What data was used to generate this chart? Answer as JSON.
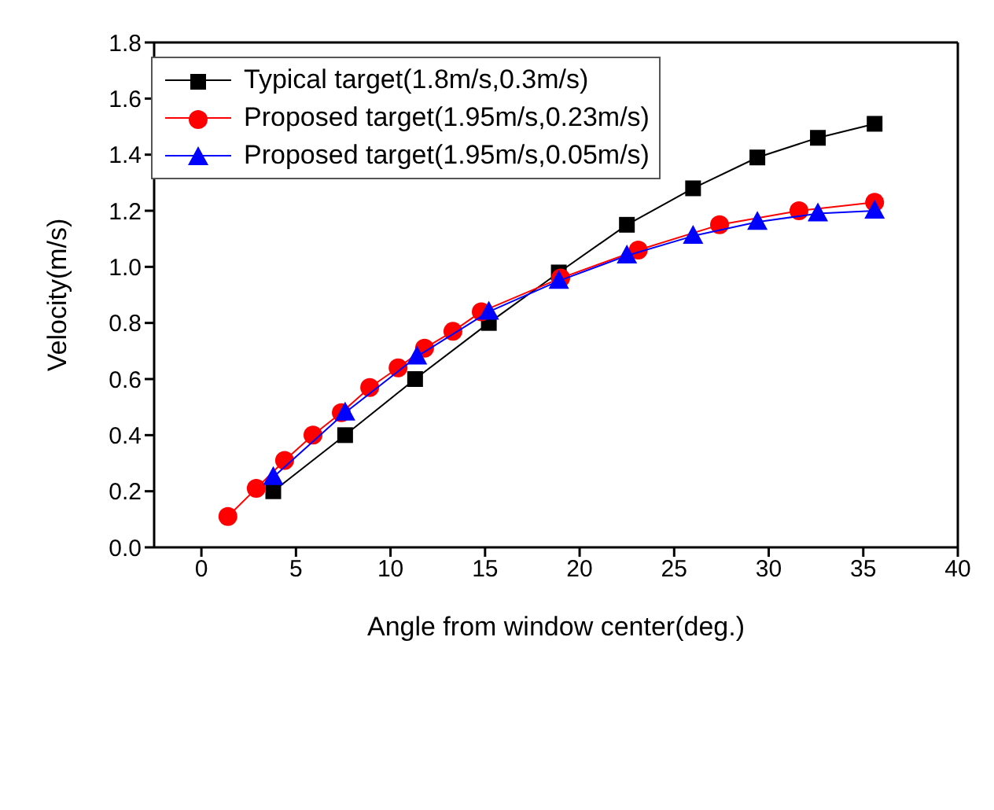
{
  "chart_data": {
    "type": "line",
    "xlabel": "Angle from window center(deg.)",
    "ylabel": "Velocity(m/s)",
    "xlim": [
      -2.5,
      40
    ],
    "xticks": [
      0,
      5,
      10,
      15,
      20,
      25,
      30,
      35,
      40
    ],
    "ylim": [
      0,
      1.8
    ],
    "yticks": [
      {
        "value": 0,
        "label": "0.0"
      },
      0.2,
      0.4,
      0.6,
      0.8,
      {
        "value": 1,
        "label": "1.0"
      },
      1.2,
      1.4,
      1.6,
      1.8
    ],
    "grid": false,
    "legend": "top left",
    "series": [
      {
        "name": "Typical target(1.8m/s,0.3m/s)",
        "color": "#000000",
        "marker": "square",
        "x": [
          3.8,
          7.6,
          11.3,
          15.2,
          18.9,
          22.5,
          26,
          29.4,
          32.6,
          35.6
        ],
        "values": [
          0.2,
          0.4,
          0.6,
          0.8,
          0.98,
          1.15,
          1.28,
          1.39,
          1.46,
          1.51
        ]
      },
      {
        "name": "Proposed target(1.95m/s,0.23m/s)",
        "color": "#ff0000",
        "marker": "circle",
        "x": [
          1.4,
          2.9,
          4.4,
          5.9,
          7.4,
          8.9,
          10.4,
          11.8,
          13.3,
          14.8,
          19,
          23.1,
          27.4,
          31.6,
          35.6
        ],
        "values": [
          0.11,
          0.21,
          0.31,
          0.4,
          0.48,
          0.57,
          0.64,
          0.71,
          0.77,
          0.84,
          0.96,
          1.06,
          1.15,
          1.2,
          1.23
        ]
      },
      {
        "name": "Proposed target(1.95m/s,0.05m/s)",
        "color": "#0000ff",
        "marker": "triangle",
        "x": [
          3.8,
          7.6,
          11.4,
          15.2,
          18.9,
          22.5,
          26,
          29.4,
          32.6,
          35.6
        ],
        "values": [
          0.25,
          0.48,
          0.68,
          0.84,
          0.95,
          1.04,
          1.11,
          1.16,
          1.19,
          1.2
        ]
      }
    ]
  }
}
